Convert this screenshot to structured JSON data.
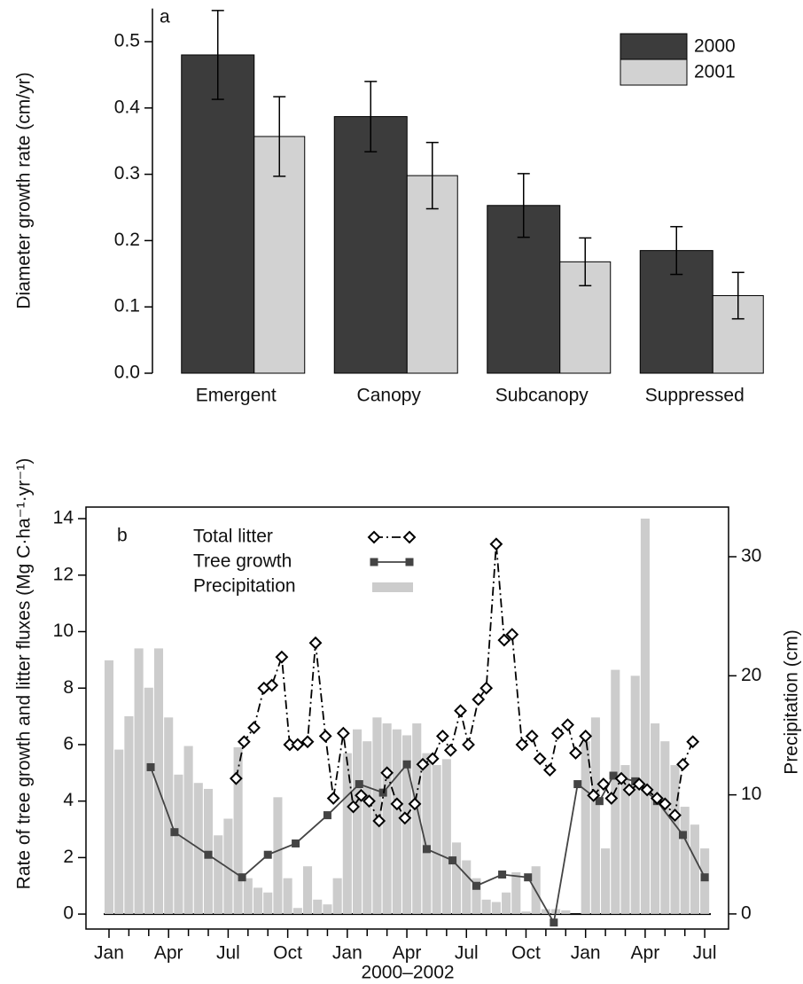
{
  "chart_data": [
    {
      "type": "bar",
      "annotation": "a",
      "ylabel": "Diameter growth rate (cm/yr)",
      "categories": [
        "Emergent",
        "Canopy",
        "Subcanopy",
        "Suppressed"
      ],
      "series": [
        {
          "name": "2000",
          "color": "#3c3c3c",
          "values": [
            0.48,
            0.387,
            0.253,
            0.185
          ],
          "errors": [
            0.067,
            0.053,
            0.048,
            0.036
          ]
        },
        {
          "name": "2001",
          "color": "#d2d2d2",
          "values": [
            0.357,
            0.298,
            0.168,
            0.117
          ],
          "errors": [
            0.06,
            0.05,
            0.036,
            0.035
          ]
        }
      ],
      "ylim": [
        0,
        0.55
      ],
      "yticks": [
        {
          "value": 0,
          "label": "0.0"
        },
        0.1,
        0.2,
        0.3,
        0.4,
        0.5
      ],
      "legend": "upper right"
    },
    {
      "type": "combo",
      "annotation": "b",
      "xlabel": "2000–2002",
      "ylabel": "Rate of tree growth and litter fluxes (Mg C·ha⁻¹·yr⁻¹)",
      "y2label": "Precipitation (cm)",
      "xlim": [
        -1.16,
        31.2
      ],
      "xticks": [
        {
          "value": 0,
          "label": "Jan"
        },
        {
          "value": 3,
          "label": "Apr"
        },
        {
          "value": 6,
          "label": "Jul"
        },
        {
          "value": 9,
          "label": "Oct"
        },
        {
          "value": 12,
          "label": "Jan"
        },
        {
          "value": 15,
          "label": "Apr"
        },
        {
          "value": 18,
          "label": "Jul"
        },
        {
          "value": 21,
          "label": "Oct"
        },
        {
          "value": 24,
          "label": "Jan"
        },
        {
          "value": 27,
          "label": "Apr"
        },
        {
          "value": 30,
          "label": "Jul"
        }
      ],
      "xminor_ticks": [
        1,
        2,
        4,
        5,
        7,
        8,
        10,
        11,
        13,
        14,
        16,
        17,
        19,
        20,
        22,
        23,
        25,
        26,
        28,
        29
      ],
      "ylim": [
        -0.53,
        14.41
      ],
      "yticks": [
        0,
        2,
        4,
        6,
        8,
        10,
        12,
        14
      ],
      "y2lim": [
        -1.27,
        34.17
      ],
      "y2ticks": [
        0,
        10,
        20,
        30
      ],
      "legend": "upper left",
      "series": [
        {
          "name": "Total litter",
          "type": "line",
          "color": "#000000",
          "linestyle": "dashdot",
          "marker": "diamond",
          "x": [
            6.4,
            6.8,
            7.3,
            7.8,
            8.2,
            8.7,
            9.1,
            9.5,
            10.0,
            10.4,
            10.9,
            11.3,
            11.8,
            12.3,
            12.7,
            13.1,
            13.6,
            14.0,
            14.5,
            14.9,
            15.4,
            15.8,
            16.3,
            16.8,
            17.2,
            17.7,
            18.1,
            18.6,
            19.0,
            19.5,
            19.9,
            20.3,
            20.8,
            21.3,
            21.7,
            22.2,
            22.6,
            23.1,
            23.5,
            24.0,
            24.4,
            24.9,
            25.3,
            25.8,
            26.2,
            26.7,
            27.1,
            27.6,
            28.0,
            28.5,
            28.9,
            29.4
          ],
          "values": [
            4.8,
            6.1,
            6.6,
            8.0,
            8.1,
            9.1,
            6.0,
            6.0,
            6.1,
            9.6,
            6.3,
            4.1,
            6.4,
            3.8,
            4.2,
            4.0,
            3.3,
            5.0,
            3.9,
            3.4,
            3.9,
            5.3,
            5.5,
            6.3,
            5.8,
            7.2,
            6.0,
            7.6,
            8.0,
            13.1,
            9.7,
            9.9,
            6.0,
            6.3,
            5.5,
            5.1,
            6.4,
            6.7,
            5.7,
            6.3,
            4.2,
            4.6,
            4.1,
            4.8,
            4.4,
            4.6,
            4.4,
            4.1,
            3.9,
            3.5,
            5.3,
            6.1
          ]
        },
        {
          "name": "Tree growth",
          "type": "line",
          "color": "#444444",
          "linestyle": "solid",
          "marker": "square",
          "x": [
            2.1,
            3.3,
            5.0,
            6.7,
            8.0,
            9.4,
            11.0,
            12.6,
            13.8,
            15.0,
            16.0,
            17.3,
            18.5,
            19.8,
            21.1,
            22.4,
            23.6,
            24.7,
            25.4,
            26.5,
            27.6,
            28.9,
            30.0
          ],
          "values": [
            5.2,
            2.9,
            2.1,
            1.3,
            2.1,
            2.5,
            3.5,
            4.6,
            4.3,
            5.3,
            2.3,
            1.9,
            1.0,
            1.4,
            1.3,
            -0.3,
            4.6,
            4.0,
            4.9,
            4.7,
            4.0,
            2.8,
            1.3
          ]
        },
        {
          "name": "Precipitation",
          "type": "bar",
          "axis": "y2",
          "color": "#cccccc",
          "x": [
            0,
            0.5,
            1,
            1.5,
            2,
            2.5,
            3,
            3.5,
            4,
            4.5,
            5,
            5.5,
            6,
            6.5,
            7,
            7.5,
            8,
            8.5,
            9,
            9.5,
            10,
            10.5,
            11,
            11.5,
            12,
            12.5,
            13,
            13.5,
            14,
            14.5,
            15,
            15.5,
            16,
            16.5,
            17,
            17.5,
            18,
            18.5,
            19,
            19.5,
            20,
            20.5,
            21,
            21.5,
            22,
            22.5,
            23,
            23.5,
            24,
            24.5,
            25,
            25.5,
            26,
            26.5,
            27,
            27.5,
            28,
            28.5,
            29,
            29.5,
            30
          ],
          "values": [
            21.3,
            13.8,
            16.6,
            22.3,
            19.0,
            22.3,
            16.5,
            11.7,
            14.1,
            11.0,
            10.5,
            6.6,
            8.0,
            14.0,
            3.0,
            2.2,
            1.8,
            9.8,
            3.0,
            0.5,
            4.0,
            1.2,
            0.8,
            3.0,
            13.5,
            15.5,
            14.5,
            16.5,
            16.0,
            15.5,
            15.0,
            16.0,
            13.5,
            12.5,
            13.0,
            6.0,
            4.5,
            3.0,
            1.2,
            1.0,
            1.8,
            3.5,
            0.2,
            4.0,
            0.4,
            0.4,
            0.3,
            0.0,
            14.5,
            16.5,
            5.5,
            20.5,
            12.5,
            20.0,
            33.2,
            16.0,
            14.5,
            12.5,
            9.0,
            7.5,
            5.5
          ]
        }
      ]
    }
  ]
}
